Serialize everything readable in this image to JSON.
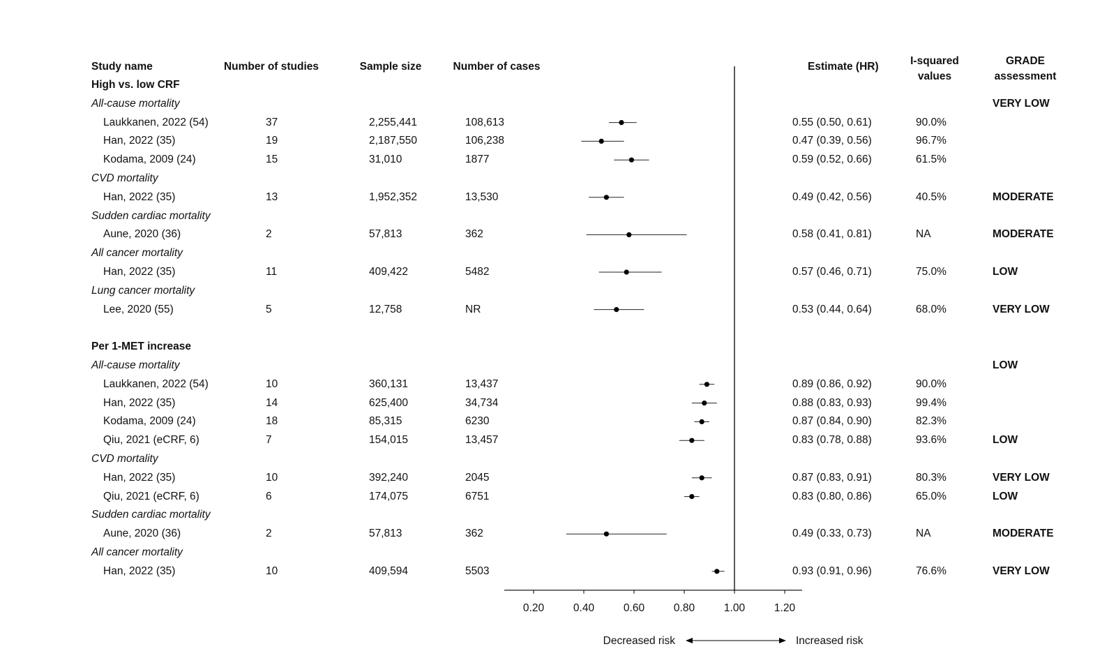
{
  "headers": {
    "study_name": "Study name",
    "num_studies": "Number of studies",
    "sample_size": "Sample size",
    "num_cases": "Number of cases",
    "estimate": "Estimate (HR)",
    "isq_line1": "I-squared",
    "isq_line2": "values",
    "grade_line1": "GRADE",
    "grade_line2": "assessment"
  },
  "direction": {
    "decreased": "Decreased risk",
    "increased": "Increased risk"
  },
  "chart_data": {
    "type": "forest",
    "xlim": [
      0.1,
      1.28
    ],
    "xticks": [
      0.2,
      0.4,
      0.6,
      0.8,
      1.0,
      1.2
    ],
    "xtick_labels": [
      "0.20",
      "0.40",
      "0.60",
      "0.80",
      "1.00",
      "1.20"
    ],
    "reference_line": 1.0,
    "rows": [
      {
        "type": "section",
        "label": "High vs. low CRF"
      },
      {
        "type": "outcome",
        "label": "All-cause mortality",
        "grade": "VERY LOW"
      },
      {
        "type": "study",
        "name": "Laukkanen, 2022 (54)",
        "n_studies": "37",
        "sample": "2,255,441",
        "cases": "108,613",
        "est": 0.55,
        "lo": 0.5,
        "hi": 0.61,
        "est_text": "0.55 (0.50, 0.61)",
        "isq": "90.0%",
        "grade": ""
      },
      {
        "type": "study",
        "name": "Han, 2022 (35)",
        "n_studies": "19",
        "sample": "2,187,550",
        "cases": "106,238",
        "est": 0.47,
        "lo": 0.39,
        "hi": 0.56,
        "est_text": "0.47 (0.39, 0.56)",
        "isq": "96.7%",
        "grade": ""
      },
      {
        "type": "study",
        "name": "Kodama, 2009 (24)",
        "n_studies": "15",
        "sample": "31,010",
        "cases": "1877",
        "est": 0.59,
        "lo": 0.52,
        "hi": 0.66,
        "est_text": "0.59 (0.52, 0.66)",
        "isq": "61.5%",
        "grade": ""
      },
      {
        "type": "outcome",
        "label": "CVD mortality",
        "grade": ""
      },
      {
        "type": "study",
        "name": "Han, 2022 (35)",
        "n_studies": "13",
        "sample": "1,952,352",
        "cases": "13,530",
        "est": 0.49,
        "lo": 0.42,
        "hi": 0.56,
        "est_text": "0.49 (0.42, 0.56)",
        "isq": "40.5%",
        "grade": "MODERATE"
      },
      {
        "type": "outcome",
        "label": "Sudden cardiac mortality",
        "grade": ""
      },
      {
        "type": "study",
        "name": "Aune, 2020 (36)",
        "n_studies": "2",
        "sample": "57,813",
        "cases": "362",
        "est": 0.58,
        "lo": 0.41,
        "hi": 0.81,
        "est_text": "0.58 (0.41, 0.81)",
        "isq": "NA",
        "grade": "MODERATE"
      },
      {
        "type": "outcome",
        "label": "All cancer mortality",
        "grade": ""
      },
      {
        "type": "study",
        "name": "Han, 2022 (35)",
        "n_studies": "11",
        "sample": "409,422",
        "cases": "5482",
        "est": 0.57,
        "lo": 0.46,
        "hi": 0.71,
        "est_text": "0.57 (0.46, 0.71)",
        "isq": "75.0%",
        "grade": "LOW"
      },
      {
        "type": "outcome",
        "label": "Lung cancer mortality",
        "grade": ""
      },
      {
        "type": "study",
        "name": "Lee, 2020 (55)",
        "n_studies": "5",
        "sample": "12,758",
        "cases": "NR",
        "est": 0.53,
        "lo": 0.44,
        "hi": 0.64,
        "est_text": "0.53 (0.44, 0.64)",
        "isq": "68.0%",
        "grade": "VERY LOW"
      },
      {
        "type": "blank"
      },
      {
        "type": "section",
        "label": "Per 1-MET increase"
      },
      {
        "type": "outcome",
        "label": "All-cause mortality",
        "grade": "LOW"
      },
      {
        "type": "study",
        "name": "Laukkanen, 2022 (54)",
        "n_studies": "10",
        "sample": "360,131",
        "cases": "13,437",
        "est": 0.89,
        "lo": 0.86,
        "hi": 0.92,
        "est_text": "0.89 (0.86, 0.92)",
        "isq": "90.0%",
        "grade": ""
      },
      {
        "type": "study",
        "name": "Han, 2022 (35)",
        "n_studies": "14",
        "sample": "625,400",
        "cases": "34,734",
        "est": 0.88,
        "lo": 0.83,
        "hi": 0.93,
        "est_text": "0.88 (0.83, 0.93)",
        "isq": "99.4%",
        "grade": ""
      },
      {
        "type": "study",
        "name": "Kodama, 2009 (24)",
        "n_studies": "18",
        "sample": "85,315",
        "cases": "6230",
        "est": 0.87,
        "lo": 0.84,
        "hi": 0.9,
        "est_text": "0.87 (0.84, 0.90)",
        "isq": "82.3%",
        "grade": ""
      },
      {
        "type": "study",
        "name": "Qiu, 2021 (eCRF, 6)",
        "n_studies": "7",
        "sample": "154,015",
        "cases": "13,457",
        "est": 0.83,
        "lo": 0.78,
        "hi": 0.88,
        "est_text": "0.83 (0.78, 0.88)",
        "isq": "93.6%",
        "grade": "LOW"
      },
      {
        "type": "outcome",
        "label": "CVD mortality",
        "grade": ""
      },
      {
        "type": "study",
        "name": "Han, 2022 (35)",
        "n_studies": "10",
        "sample": "392,240",
        "cases": "2045",
        "est": 0.87,
        "lo": 0.83,
        "hi": 0.91,
        "est_text": "0.87 (0.83, 0.91)",
        "isq": "80.3%",
        "grade": "VERY LOW"
      },
      {
        "type": "study",
        "name": "Qiu, 2021 (eCRF, 6)",
        "n_studies": "6",
        "sample": "174,075",
        "cases": "6751",
        "est": 0.83,
        "lo": 0.8,
        "hi": 0.86,
        "est_text": "0.83 (0.80, 0.86)",
        "isq": "65.0%",
        "grade": "LOW"
      },
      {
        "type": "outcome",
        "label": "Sudden cardiac mortality",
        "grade": ""
      },
      {
        "type": "study",
        "name": "Aune, 2020 (36)",
        "n_studies": "2",
        "sample": "57,813",
        "cases": "362",
        "est": 0.49,
        "lo": 0.33,
        "hi": 0.73,
        "est_text": "0.49 (0.33, 0.73)",
        "isq": "NA",
        "grade": "MODERATE"
      },
      {
        "type": "outcome",
        "label": "All cancer mortality",
        "grade": ""
      },
      {
        "type": "study",
        "name": "Han, 2022 (35)",
        "n_studies": "10",
        "sample": "409,594",
        "cases": "5503",
        "est": 0.93,
        "lo": 0.91,
        "hi": 0.96,
        "est_text": "0.93 (0.91, 0.96)",
        "isq": "76.6%",
        "grade": "VERY LOW"
      }
    ]
  }
}
